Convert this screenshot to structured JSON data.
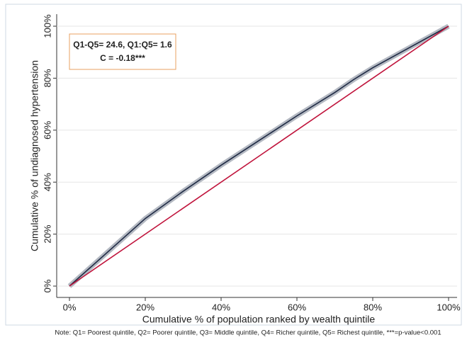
{
  "chart_data": {
    "type": "line",
    "xlabel": "Cumulative % of population ranked by wealth quintile",
    "ylabel": "Cumulative % of undiagnosed hypertension",
    "annotations": [
      "Q1-Q5= 24.6, Q1:Q5= 1.6",
      "C = -0.18***"
    ],
    "note": "Note: Q1= Poorest quintile, Q2= Poorer quintile, Q3= Middle quintile, Q4= Richer quintile, Q5= Richest quintile, ***=p-value<0.001",
    "series": [
      {
        "color": "#1f2a44",
        "band_color": "#b4b9c2",
        "x": [
          0,
          10,
          20,
          30,
          40,
          50,
          60,
          70,
          75,
          80,
          90,
          100
        ],
        "values": [
          0,
          13,
          26,
          36.5,
          46.5,
          56,
          65.5,
          74.5,
          79.5,
          84,
          92,
          100
        ]
      },
      {
        "color": "#c0143c",
        "x": [
          0,
          100
        ],
        "values": [
          0,
          100
        ]
      }
    ],
    "xlim": [
      0,
      100
    ],
    "ylim": [
      0,
      100
    ],
    "xticks": [
      {
        "value": 0,
        "label": "0%"
      },
      {
        "value": 20,
        "label": "20%"
      },
      {
        "value": 40,
        "label": "40%"
      },
      {
        "value": 60,
        "label": "60%"
      },
      {
        "value": 80,
        "label": "80%"
      },
      {
        "value": 100,
        "label": "100%"
      }
    ],
    "yticks": [
      {
        "value": 0,
        "label": "0%"
      },
      {
        "value": 20,
        "label": "20%"
      },
      {
        "value": 40,
        "label": "40%"
      },
      {
        "value": 60,
        "label": "60%"
      },
      {
        "value": 80,
        "label": "80%"
      },
      {
        "value": 100,
        "label": "100%"
      }
    ],
    "grid": true
  }
}
